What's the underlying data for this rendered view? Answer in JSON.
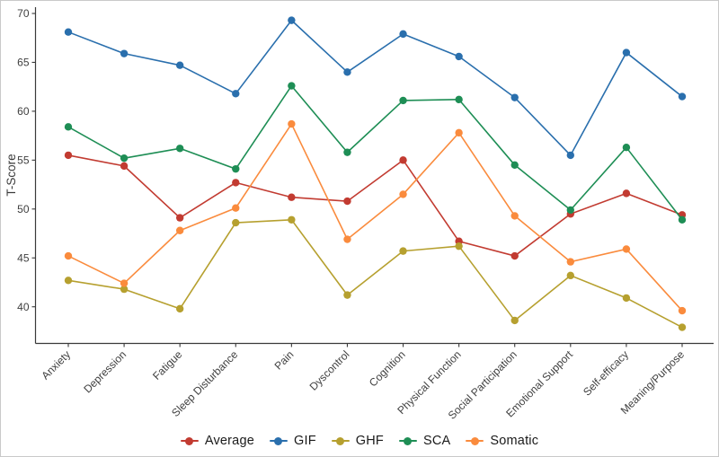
{
  "figure": {
    "background": "#ffffff",
    "border_color": "#c9c9c9",
    "axis_color": "#3a3a3a",
    "tick_label_color": "#3f3f3f",
    "legend_text_color": "#1a1a1a"
  },
  "chart_data": {
    "type": "line",
    "title": "",
    "xlabel": "",
    "ylabel": "T-Score",
    "ylim": [
      36,
      71
    ],
    "yticks": [
      40,
      45,
      50,
      55,
      60,
      65,
      70
    ],
    "grid": false,
    "legend_position": "bottom-center",
    "marker": "circle",
    "categories": [
      "Anxiety",
      "Depression",
      "Fatigue",
      "Sleep Disturbance",
      "Pain",
      "Dyscontrol",
      "Cognition",
      "Physical Function",
      "Social Participation",
      "Emotional Support",
      "Self-efficacy",
      "Meaning/Purpose"
    ],
    "series": [
      {
        "name": "Average",
        "color": "#c23b31",
        "values": [
          55.5,
          54.4,
          49.1,
          52.7,
          51.2,
          50.8,
          55.0,
          46.7,
          45.2,
          49.5,
          51.6,
          49.4
        ]
      },
      {
        "name": "GIF",
        "color": "#2a6fad",
        "values": [
          68.1,
          65.9,
          64.7,
          61.8,
          69.3,
          64.0,
          67.9,
          65.6,
          61.4,
          55.5,
          66.0,
          61.5
        ]
      },
      {
        "name": "GHF",
        "color": "#b6a02f",
        "values": [
          42.7,
          41.8,
          39.8,
          48.6,
          48.9,
          41.2,
          45.7,
          46.2,
          38.6,
          43.2,
          40.9,
          37.9
        ]
      },
      {
        "name": "SCA",
        "color": "#1e8e55",
        "values": [
          58.4,
          55.2,
          56.2,
          54.1,
          62.6,
          55.8,
          61.1,
          61.2,
          54.5,
          49.9,
          56.3,
          48.9
        ]
      },
      {
        "name": "Somatic",
        "color": "#fa8b3d",
        "values": [
          45.2,
          42.4,
          47.8,
          50.1,
          58.7,
          46.9,
          51.5,
          57.8,
          49.3,
          44.6,
          45.9,
          39.6
        ]
      }
    ]
  }
}
